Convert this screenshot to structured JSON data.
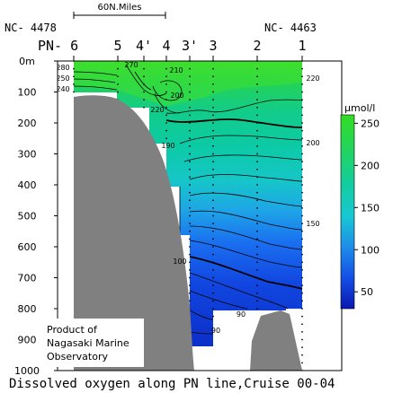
{
  "chart_data": {
    "type": "heatmap",
    "title": "Dissolved oxygen along PN line,Cruise 00-04",
    "scale_label": "60N.Miles",
    "credit": "Product of\nNagasaki Marine\nObservatory",
    "endpoints": {
      "left": "NC- 4478",
      "right": "NC- 4463"
    },
    "stations": [
      "PN- 6",
      "5",
      "4'",
      "4",
      "3'",
      "3",
      "2",
      "1"
    ],
    "unit": "µmol/l",
    "y_axis": {
      "ticks": [
        "0m",
        "100",
        "200",
        "300",
        "400",
        "500",
        "600",
        "700",
        "800",
        "900",
        "1000"
      ],
      "ylim": [
        0,
        1000
      ]
    },
    "colorbar": {
      "ticks": [
        "250",
        "200",
        "150",
        "100",
        "50"
      ],
      "range": [
        30,
        260
      ]
    },
    "contour_labels": [
      "280",
      "270",
      "250",
      "240",
      "210",
      "200",
      "220",
      "190",
      "220",
      "200",
      "150",
      "100",
      "90",
      "90"
    ]
  }
}
